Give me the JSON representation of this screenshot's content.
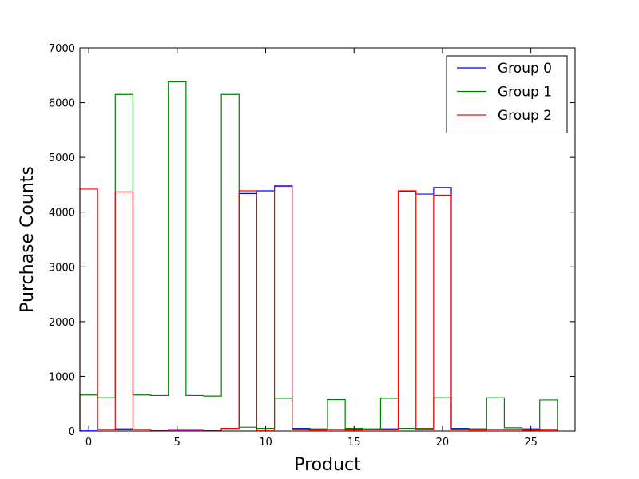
{
  "chart_data": {
    "type": "line",
    "style": "step-histogram",
    "xlabel": "Product",
    "ylabel": "Purchase Counts",
    "xlim": [
      -0.5,
      27.5
    ],
    "ylim": [
      0,
      7000
    ],
    "x_ticks": [
      0,
      5,
      10,
      15,
      20,
      25
    ],
    "y_ticks": [
      0,
      1000,
      2000,
      3000,
      4000,
      5000,
      6000,
      7000
    ],
    "grid": false,
    "legend": {
      "placement": "top-right"
    },
    "x": [
      0,
      1,
      2,
      3,
      4,
      5,
      6,
      7,
      8,
      9,
      10,
      11,
      12,
      13,
      14,
      15,
      16,
      17,
      18,
      19,
      20,
      21,
      22,
      23,
      24,
      25,
      26
    ],
    "series": [
      {
        "name": "Group 0",
        "color": "#0000ff",
        "values": [
          20,
          30,
          40,
          30,
          10,
          20,
          20,
          10,
          50,
          4340,
          4390,
          4480,
          50,
          30,
          30,
          40,
          30,
          40,
          4380,
          4330,
          4450,
          50,
          40,
          30,
          30,
          40,
          30
        ]
      },
      {
        "name": "Group 1",
        "color": "#008000",
        "values": [
          660,
          610,
          6150,
          660,
          650,
          6380,
          650,
          640,
          6150,
          70,
          50,
          600,
          40,
          40,
          575,
          50,
          40,
          600,
          50,
          50,
          610,
          40,
          40,
          610,
          60,
          20,
          570
        ]
      },
      {
        "name": "Group 2",
        "color": "#ff0000",
        "values": [
          4420,
          30,
          4370,
          30,
          10,
          30,
          30,
          10,
          50,
          4390,
          20,
          4470,
          30,
          20,
          30,
          20,
          30,
          30,
          4390,
          40,
          4310,
          30,
          20,
          30,
          30,
          20,
          20
        ]
      }
    ]
  }
}
